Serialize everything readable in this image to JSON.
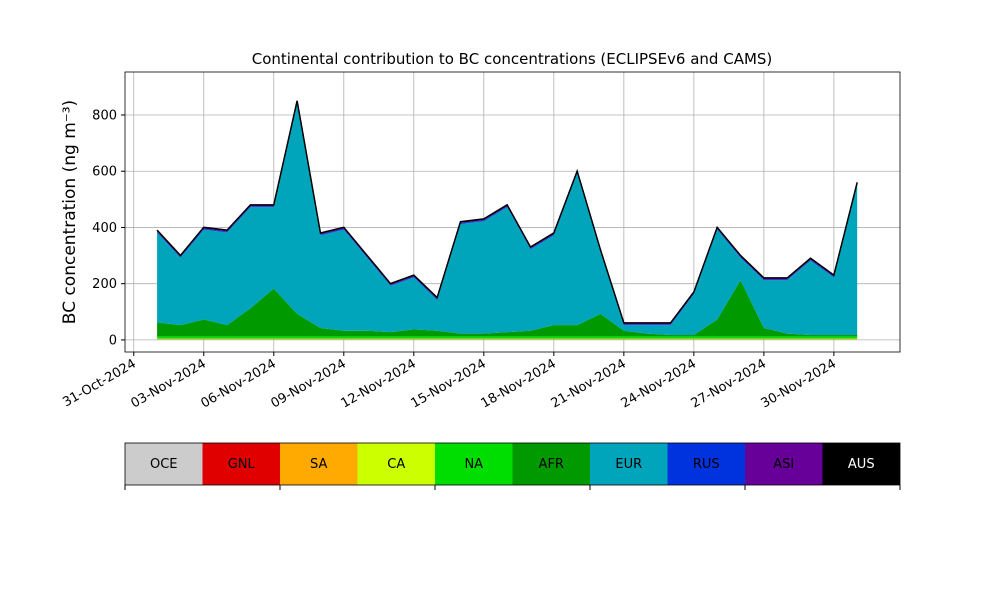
{
  "chart_data": {
    "type": "stacked_area",
    "title": "Continental contribution to BC concentrations (ECLIPSEv6 and CAMS)",
    "y_label": "BC concentration (ng m⁻³)",
    "x": [
      "2024-11-01",
      "2024-11-02",
      "2024-11-03",
      "2024-11-04",
      "2024-11-05",
      "2024-11-06",
      "2024-11-07",
      "2024-11-08",
      "2024-11-09",
      "2024-11-10",
      "2024-11-11",
      "2024-11-12",
      "2024-11-13",
      "2024-11-14",
      "2024-11-15",
      "2024-11-16",
      "2024-11-17",
      "2024-11-18",
      "2024-11-19",
      "2024-11-20",
      "2024-11-21",
      "2024-11-22",
      "2024-11-23",
      "2024-11-24",
      "2024-11-25",
      "2024-11-26",
      "2024-11-27",
      "2024-11-28",
      "2024-11-29",
      "2024-11-30",
      "2024-12-01"
    ],
    "series": [
      {
        "name": "OCE",
        "color": "#cccccc",
        "values": [
          1,
          1,
          1,
          1,
          1,
          1,
          1,
          1,
          1,
          1,
          1,
          1,
          1,
          1,
          1,
          1,
          1,
          1,
          1,
          1,
          1,
          1,
          1,
          1,
          1,
          1,
          1,
          1,
          1,
          1,
          1
        ]
      },
      {
        "name": "GNL",
        "color": "#e00000",
        "values": [
          0.5,
          0.5,
          0.5,
          0.5,
          0.5,
          0.5,
          0.5,
          0.5,
          0.5,
          0.5,
          0.5,
          0.5,
          0.5,
          0.5,
          0.5,
          0.5,
          0.5,
          0.5,
          0.5,
          0.5,
          0.5,
          0.5,
          0.5,
          0.5,
          0.5,
          0.5,
          0.5,
          0.5,
          0.5,
          0.5,
          0.5
        ]
      },
      {
        "name": "SA",
        "color": "#ffaa00",
        "values": [
          1,
          1,
          1,
          1,
          1,
          1,
          1,
          1,
          1,
          1,
          1,
          1,
          1,
          1,
          1,
          1,
          1,
          1,
          1,
          1,
          1,
          1,
          1,
          1,
          1,
          1,
          1,
          1,
          1,
          1,
          1
        ]
      },
      {
        "name": "CA",
        "color": "#ccff00",
        "values": [
          2,
          2,
          2,
          2,
          2,
          2,
          2,
          2,
          2,
          2,
          2,
          2,
          2,
          2,
          2,
          2,
          2,
          2,
          2,
          2,
          2,
          2,
          2,
          2,
          2,
          2,
          2,
          2,
          2,
          2,
          2
        ]
      },
      {
        "name": "NA",
        "color": "#00dd00",
        "values": [
          8,
          8,
          8,
          8,
          8,
          8,
          8,
          8,
          8,
          8,
          8,
          8,
          8,
          8,
          8,
          8,
          8,
          8,
          8,
          8,
          8,
          8,
          8,
          8,
          8,
          8,
          8,
          8,
          8,
          8,
          8
        ]
      },
      {
        "name": "AFR",
        "color": "#009900",
        "values": [
          50,
          40,
          60,
          40,
          100,
          170,
          80,
          30,
          20,
          20,
          15,
          25,
          20,
          10,
          10,
          15,
          20,
          40,
          40,
          80,
          20,
          10,
          5,
          5,
          60,
          200,
          30,
          10,
          5,
          5,
          5
        ]
      },
      {
        "name": "EUR",
        "color": "#00a5bb",
        "values": [
          320,
          240,
          320,
          330,
          360,
          290,
          750,
          330,
          360,
          260,
          165,
          185,
          110,
          390,
          400,
          445,
          290,
          320,
          540,
          220,
          20,
          30,
          35,
          145,
          320,
          80,
          170,
          190,
          265,
          205,
          535
        ]
      },
      {
        "name": "RUS",
        "color": "#0033dd",
        "values": [
          3,
          3,
          3,
          3,
          3,
          3,
          3,
          3,
          3,
          3,
          3,
          3,
          3,
          3,
          3,
          3,
          3,
          3,
          3,
          3,
          3,
          3,
          3,
          3,
          3,
          3,
          3,
          3,
          3,
          3,
          3
        ]
      },
      {
        "name": "ASI",
        "color": "#660099",
        "values": [
          3,
          3,
          3,
          3,
          3,
          3,
          3,
          3,
          3,
          3,
          3,
          3,
          3,
          3,
          3,
          3,
          3,
          3,
          3,
          3,
          3,
          3,
          3,
          3,
          3,
          3,
          3,
          3,
          3,
          3,
          3
        ]
      },
      {
        "name": "AUS",
        "color": "#000000",
        "values": [
          2,
          2,
          2,
          2,
          2,
          2,
          2,
          2,
          2,
          2,
          2,
          2,
          2,
          2,
          2,
          2,
          2,
          2,
          2,
          2,
          2,
          2,
          2,
          2,
          2,
          2,
          2,
          2,
          2,
          2,
          2
        ]
      }
    ],
    "xlim": [
      "2024-10-30T15:00",
      "2024-12-02T20:00"
    ],
    "xticks": [
      {
        "value": "2024-10-31",
        "label": "31-Oct-2024"
      },
      {
        "value": "2024-11-03",
        "label": "03-Nov-2024"
      },
      {
        "value": "2024-11-06",
        "label": "06-Nov-2024"
      },
      {
        "value": "2024-11-09",
        "label": "09-Nov-2024"
      },
      {
        "value": "2024-11-12",
        "label": "12-Nov-2024"
      },
      {
        "value": "2024-11-15",
        "label": "15-Nov-2024"
      },
      {
        "value": "2024-11-18",
        "label": "18-Nov-2024"
      },
      {
        "value": "2024-11-21",
        "label": "21-Nov-2024"
      },
      {
        "value": "2024-11-24",
        "label": "24-Nov-2024"
      },
      {
        "value": "2024-11-27",
        "label": "27-Nov-2024"
      },
      {
        "value": "2024-11-30",
        "label": "30-Nov-2024"
      }
    ],
    "ylim": [
      -43,
      953
    ],
    "yticks": [
      0,
      200,
      400,
      600,
      800
    ],
    "grid": true
  }
}
